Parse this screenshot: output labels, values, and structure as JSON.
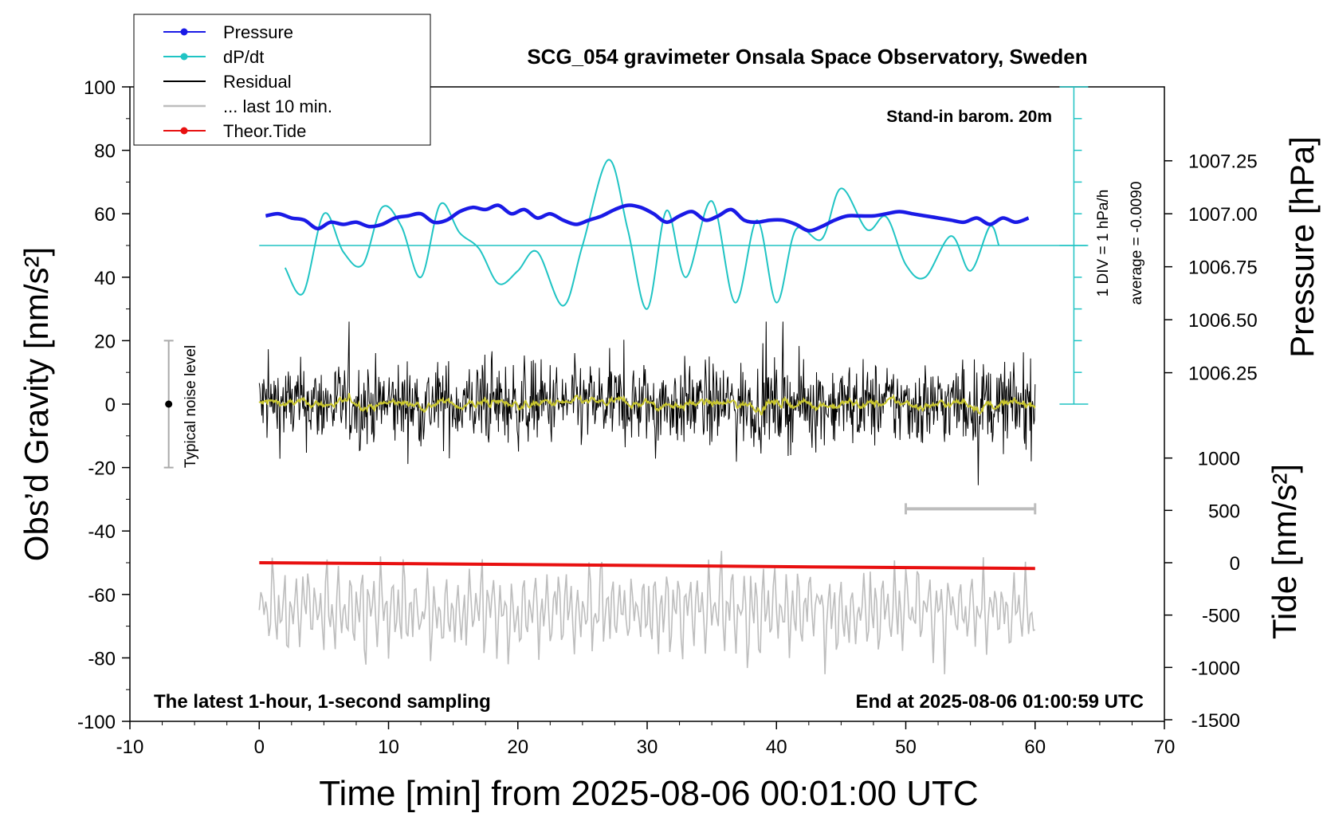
{
  "chart_data": {
    "type": "line",
    "title": "SCG_054 gravimeter Onsala Space Observatory, Sweden",
    "xlabel": "Time [min] from 2025-08-06 00:01:00 UTC",
    "ylabel_left": "Obs’d Gravity [nm/s²]",
    "ylabel_pressure": "Pressure [hPa]",
    "ylabel_tide": "Tide [nm/s²]",
    "xlim": [
      -10,
      70
    ],
    "ylim": [
      -100,
      100
    ],
    "x_ticks": [
      "-10",
      "0",
      "10",
      "20",
      "30",
      "40",
      "50",
      "60",
      "70"
    ],
    "y_ticks": [
      "-100",
      "-80",
      "-60",
      "-40",
      "-20",
      "0",
      "20",
      "40",
      "60",
      "80",
      "100"
    ],
    "pressure_axis": {
      "ticks": [
        "1006.25",
        "1006.50",
        "1006.75",
        "1007.00",
        "1007.25"
      ],
      "values": [
        1006.25,
        1006.5,
        1006.75,
        1007.0,
        1007.25
      ]
    },
    "tide_axis": {
      "ticks": [
        "-1500",
        "-1000",
        "-500",
        "0",
        "500",
        "1000"
      ],
      "values": [
        -1500,
        -1000,
        -500,
        0,
        500,
        1000
      ]
    },
    "legend": [
      {
        "label": "Pressure",
        "color": "#1a1ae6",
        "marker": true
      },
      {
        "label": "dP/dt",
        "color": "#20c4c4",
        "marker": true
      },
      {
        "label": "Residual",
        "color": "#000000",
        "marker": false
      },
      {
        "label": "... last 10 min.",
        "color": "#bdbdbd",
        "marker": false
      },
      {
        "label": "Theor.Tide",
        "color": "#e81010",
        "marker": true
      }
    ],
    "annotations": {
      "barometer": "Stand-in barom. 20m",
      "div_label": "1 DIV = 1 hPa/h",
      "average_label": "average = -0.0090",
      "noise_label": "Typical noise level",
      "footer_left": "The latest 1-hour, 1-second sampling",
      "footer_right": "End at 2025-08-06 01:00:59 UTC"
    },
    "series": [
      {
        "name": "Pressure",
        "color": "#1a1ae6",
        "x": [
          0.5,
          1.5,
          2.5,
          3.5,
          4.5,
          5.5,
          6.5,
          7.5,
          8.5,
          9.5,
          10.5,
          11.5,
          12.5,
          13.5,
          14.5,
          15.5,
          16.5,
          17.5,
          18.5,
          19.5,
          20.5,
          21.5,
          22.5,
          23.5,
          24.5,
          25.5,
          26.5,
          27.5,
          28.5,
          29.5,
          30.5,
          31.5,
          32.5,
          33.5,
          34.5,
          35.5,
          36.5,
          37.5,
          38.5,
          39.5,
          40.5,
          41.5,
          42.5,
          43.5,
          44.5,
          45.5,
          46.5,
          47.5,
          48.5,
          49.5,
          50.5,
          51.5,
          52.5,
          53.5,
          54.5,
          55.5,
          56.5,
          57.5,
          58.5,
          59.5
        ],
        "values": [
          1006.99,
          1007.0,
          1006.98,
          1006.97,
          1006.93,
          1006.96,
          1006.95,
          1006.96,
          1006.94,
          1006.95,
          1006.98,
          1006.99,
          1007.0,
          1006.96,
          1006.97,
          1007.01,
          1007.03,
          1007.02,
          1007.04,
          1007.0,
          1007.02,
          1006.98,
          1007.0,
          1006.97,
          1006.95,
          1006.97,
          1006.99,
          1007.02,
          1007.04,
          1007.03,
          1007.0,
          1006.96,
          1006.99,
          1007.01,
          1006.97,
          1006.99,
          1007.02,
          1006.97,
          1006.96,
          1006.97,
          1006.97,
          1006.95,
          1006.92,
          1006.94,
          1006.97,
          1006.99,
          1006.99,
          1006.99,
          1007.0,
          1007.01,
          1007.0,
          1006.99,
          1006.98,
          1006.97,
          1006.96,
          1006.98,
          1006.95,
          1006.98,
          1006.96,
          1006.98
        ]
      },
      {
        "name": "dP/dt",
        "color": "#20c4c4",
        "x": [
          2,
          3.4,
          5,
          6.5,
          8,
          9.5,
          11,
          12.5,
          14,
          15.5,
          17,
          18.5,
          20,
          21.5,
          23.5,
          25,
          27,
          28.5,
          30,
          31.5,
          33,
          35,
          36.8,
          38.5,
          40,
          41.5,
          43.5,
          45,
          47,
          48.5,
          50,
          51.5,
          53.5,
          55,
          56.5,
          57.2
        ],
        "values": [
          43,
          35,
          60,
          48,
          44,
          62,
          56,
          40,
          63,
          54,
          49,
          38,
          42,
          48,
          31,
          50,
          77,
          55,
          30,
          61,
          40,
          64,
          32,
          58,
          32,
          55,
          52,
          68,
          55,
          59,
          44,
          40,
          53,
          42,
          56,
          50
        ]
      },
      {
        "name": "Theor.Tide",
        "color": "#e81010",
        "x": [
          0,
          15,
          30,
          45,
          60
        ],
        "values": [
          0,
          -12,
          -27,
          -42,
          -55
        ]
      }
    ],
    "residual": {
      "name": "Residual",
      "color": "#000000",
      "smooth_color": "#c9c62e",
      "center": 0,
      "spread": 20,
      "xrange": [
        0,
        60
      ]
    },
    "last_10_min": {
      "name": "... last 10 min.",
      "color": "#bdbdbd",
      "center": -65,
      "spread": 28,
      "bar_xrange": [
        50,
        60
      ],
      "bar_y": -33
    },
    "noise_bar": {
      "x": -7,
      "range": [
        -20,
        20
      ]
    }
  }
}
